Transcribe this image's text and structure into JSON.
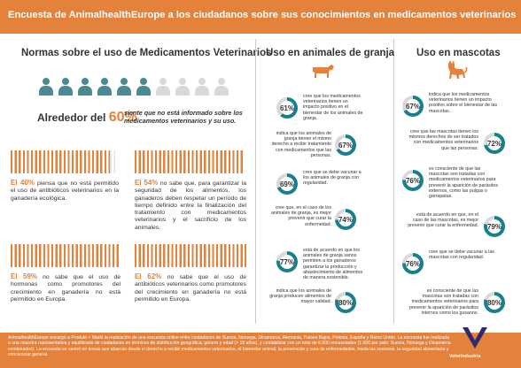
{
  "header": {
    "title": "Encuesta de AnimalhealthEurope a los ciudadanos sobre sus conocimientos en medicamentos veterinarios"
  },
  "left": {
    "title": "Normas sobre el uso de Medicamentos Veterinarios",
    "headline_prefix": "Alrededor del",
    "headline_pct": "60%",
    "headline_text": "siente que no está informado sobre los medicamentos veterinarios y su uso.",
    "stats": [
      {
        "pct": "El 40%",
        "text": "piensa que no está permitido el uso de antibióticos veterinarios en la ganadería ecológica."
      },
      {
        "pct": "El 54%",
        "text": "no sabe que, para garantizar la seguridad de los alimentos, los ganaderos deben respetar un período de tiempo definido entre la finalización del tratamiento con medicamentos veterinarios y el sacrificio de los animales."
      },
      {
        "pct": "El 59%",
        "text": "no sabe que el uso de hormonas como promotores del crecimiento en ganadería no está permitido en Europa."
      },
      {
        "pct": "El 62%",
        "text": "no sabe que el uso de antibióticos veterinarios como promotores del crecimiento en ganadería no está permitido en Europa."
      }
    ]
  },
  "farm": {
    "title": "Uso en animales de granja",
    "items": [
      {
        "pct": "61%",
        "value": 61,
        "text": "cree que los medicamentos veterinarios tienen un impacto positivo en el bienestar de los animales de granja."
      },
      {
        "pct": "67%",
        "value": 67,
        "text": "indica que los animales de granja tienen el mismo derecho a recibir tratamiento con medicamentos que las personas."
      },
      {
        "pct": "69%",
        "value": 69,
        "text": "cree que se debe vacunar a los animales de granja con regularidad."
      },
      {
        "pct": "74%",
        "value": 74,
        "text": "cree que, en el caso de los animales de granja, es mejor prevenir que curar la enfermedad."
      },
      {
        "pct": "77%",
        "value": 77,
        "text": "está de acuerdo en que los animales de granja sanos permiten a los ganaderos garantizar la producción y abastecimiento de alimentos de manera sostenible."
      },
      {
        "pct": "80%",
        "value": 80,
        "text": "indica que los animales de granja producen alimentos de mayor calidad."
      }
    ]
  },
  "pets": {
    "title": "Uso en mascotas",
    "items": [
      {
        "pct": "67%",
        "value": 67,
        "text": "indica que los medicamentos veterinarios tienen un impacto positivo sobre el bienestar de las mascotas."
      },
      {
        "pct": "72%",
        "value": 72,
        "text": "cree que las mascotas tienen los mismos derechos de ser tratados con medicamentos veterinarios que las personas."
      },
      {
        "pct": "76%",
        "value": 76,
        "text": "es consciente de que las mascotas son tratadas con medicamentos veterinarios para prevenir la aparición de parásitos externos, como las pulgas o garrapatas."
      },
      {
        "pct": "79%",
        "value": 79,
        "text": "está de acuerdo en que, en el caso de las mascotas, es mejor prevenir que curar la enfermedad."
      },
      {
        "pct": "76%",
        "value": 76,
        "text": "cree que se debe vacunar a las mascotas con regularidad."
      },
      {
        "pct": "80%",
        "value": 80,
        "text": "es consciente de que las mascotas son tratadas con medicamentos veterinarios para prevenir la aparición de parásitos internos como los gusanos."
      }
    ]
  },
  "footer": {
    "text": "AnimalhealthEurope encargó a Produkt + Markt la realización de una encuesta online entre ciudadanos de Suecia, Noruega, Dinamarca, Alemania, Países Bajos, Polonia, España y Reino Unido. La encuesta fue realizada a una muestra representativa y equilibrada de ciudadanos en términos de distribución geográfica, género y edad (> 18 años), y contabilizar con un total de 6.000 encuestados (1.000 por país: Suecia, Noruega y Dinamarca combinados). La encuesta se centró en temas que abarcan desde el derecho a recibir medicamentos veterinarios, el bienestar animal, la prevención y cura de enfermedades, hasta las zoonosis, la seguridad alimentaria y concienciar general.",
    "logo": "Veterindustria"
  },
  "colors": {
    "accent": "#e4813a",
    "teal": "#1a7f8c",
    "people": "#4a8a92",
    "person_highlight": "#d9d9d9"
  }
}
